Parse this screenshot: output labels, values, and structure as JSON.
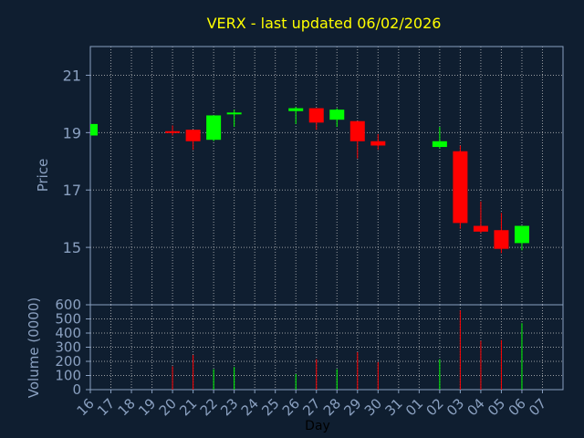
{
  "chart_data": {
    "type": "candlestick",
    "title": "VERX - last updated 06/02/2026",
    "xlabel": "Day",
    "ylabel": "Price",
    "volume_label": "Volume (0000)",
    "grid": true,
    "x_tick_labels": [
      "16",
      "17",
      "18",
      "19",
      "20",
      "21",
      "22",
      "23",
      "24",
      "25",
      "26",
      "27",
      "28",
      "29",
      "30",
      "31",
      "01",
      "02",
      "03",
      "04",
      "05",
      "06",
      "07"
    ],
    "price_ylim": [
      13.0,
      22.0
    ],
    "price_ticks": [
      15,
      17,
      19,
      21
    ],
    "volume_ylim": [
      0,
      600
    ],
    "volume_ticks": [
      0,
      100,
      200,
      300,
      400,
      500,
      600
    ],
    "colors": {
      "background": "#0f1e30",
      "axes": "#8aa0c0",
      "grid": "#c8c8c8",
      "title": "#ffff00",
      "up": "#00ff00",
      "down": "#ff0000",
      "tick_text": "#8aa0c0"
    },
    "candles": [
      {
        "day": "16",
        "open": 18.9,
        "high": 19.3,
        "low": 18.9,
        "close": 19.3,
        "volume": 0
      },
      {
        "day": "20",
        "open": 19.05,
        "high": 19.25,
        "low": 18.9,
        "close": 19.0,
        "volume": 165
      },
      {
        "day": "21",
        "open": 19.1,
        "high": 19.1,
        "low": 18.4,
        "close": 18.7,
        "volume": 245
      },
      {
        "day": "22",
        "open": 18.75,
        "high": 19.6,
        "low": 18.7,
        "close": 19.6,
        "volume": 145
      },
      {
        "day": "23",
        "open": 19.7,
        "high": 19.8,
        "low": 19.2,
        "close": 19.7,
        "volume": 160
      },
      {
        "day": "26",
        "open": 19.75,
        "high": 19.9,
        "low": 19.3,
        "close": 19.85,
        "volume": 110
      },
      {
        "day": "27",
        "open": 19.85,
        "high": 19.85,
        "low": 19.1,
        "close": 19.35,
        "volume": 215
      },
      {
        "day": "28",
        "open": 19.45,
        "high": 19.85,
        "low": 19.2,
        "close": 19.8,
        "volume": 145
      },
      {
        "day": "29",
        "open": 19.4,
        "high": 19.4,
        "low": 18.1,
        "close": 18.7,
        "volume": 265
      },
      {
        "day": "30",
        "open": 18.7,
        "high": 18.95,
        "low": 18.4,
        "close": 18.55,
        "volume": 195
      },
      {
        "day": "02",
        "open": 18.5,
        "high": 19.2,
        "low": 18.45,
        "close": 18.7,
        "volume": 215
      },
      {
        "day": "03",
        "open": 18.35,
        "high": 18.55,
        "low": 15.65,
        "close": 15.85,
        "volume": 560
      },
      {
        "day": "04",
        "open": 15.75,
        "high": 16.6,
        "low": 15.5,
        "close": 15.55,
        "volume": 345
      },
      {
        "day": "05",
        "open": 15.6,
        "high": 16.2,
        "low": 14.8,
        "close": 14.95,
        "volume": 350
      },
      {
        "day": "06",
        "open": 15.15,
        "high": 15.75,
        "low": 14.9,
        "close": 15.75,
        "volume": 470
      }
    ]
  }
}
